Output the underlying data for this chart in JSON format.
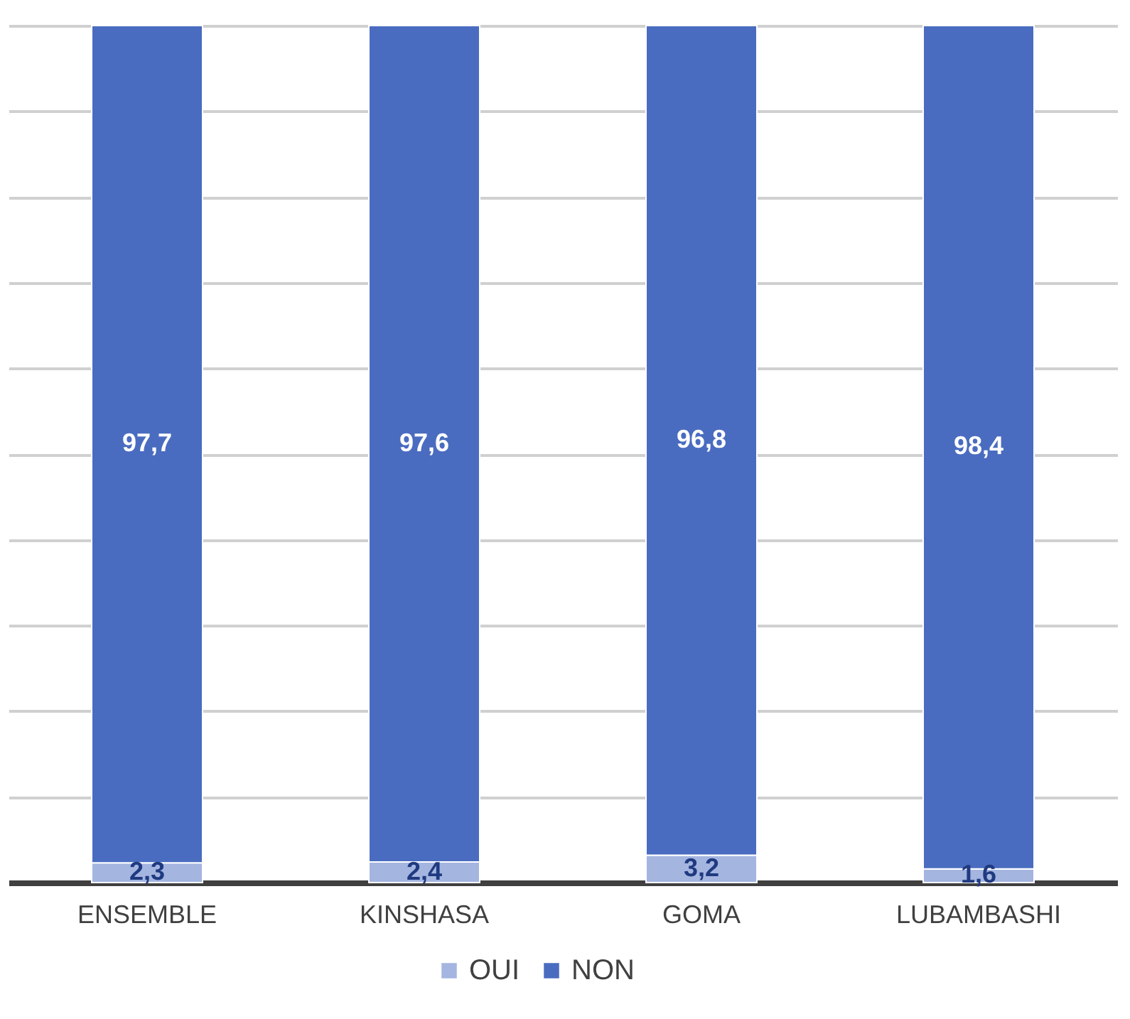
{
  "chart_data": {
    "type": "bar",
    "stacked": true,
    "categories": [
      "ENSEMBLE",
      "KINSHASA",
      "GOMA",
      "LUBAMBASHI"
    ],
    "series": [
      {
        "name": "OUI",
        "color": "#a4b5e0",
        "values": [
          2.3,
          2.4,
          3.2,
          1.6
        ],
        "value_labels": [
          "2,3",
          "2,4",
          "3,2",
          "1,6"
        ]
      },
      {
        "name": "NON",
        "color": "#4a6cc0",
        "values": [
          97.7,
          97.6,
          96.8,
          98.4
        ],
        "value_labels": [
          "97,7",
          "97,6",
          "96,8",
          "98,4"
        ]
      }
    ],
    "ylim": [
      0,
      100
    ],
    "yticks": [
      0,
      10,
      20,
      30,
      40,
      50,
      60,
      70,
      80,
      90,
      100
    ],
    "grid": "y",
    "tick_labels": "x",
    "legend": "bottom"
  }
}
